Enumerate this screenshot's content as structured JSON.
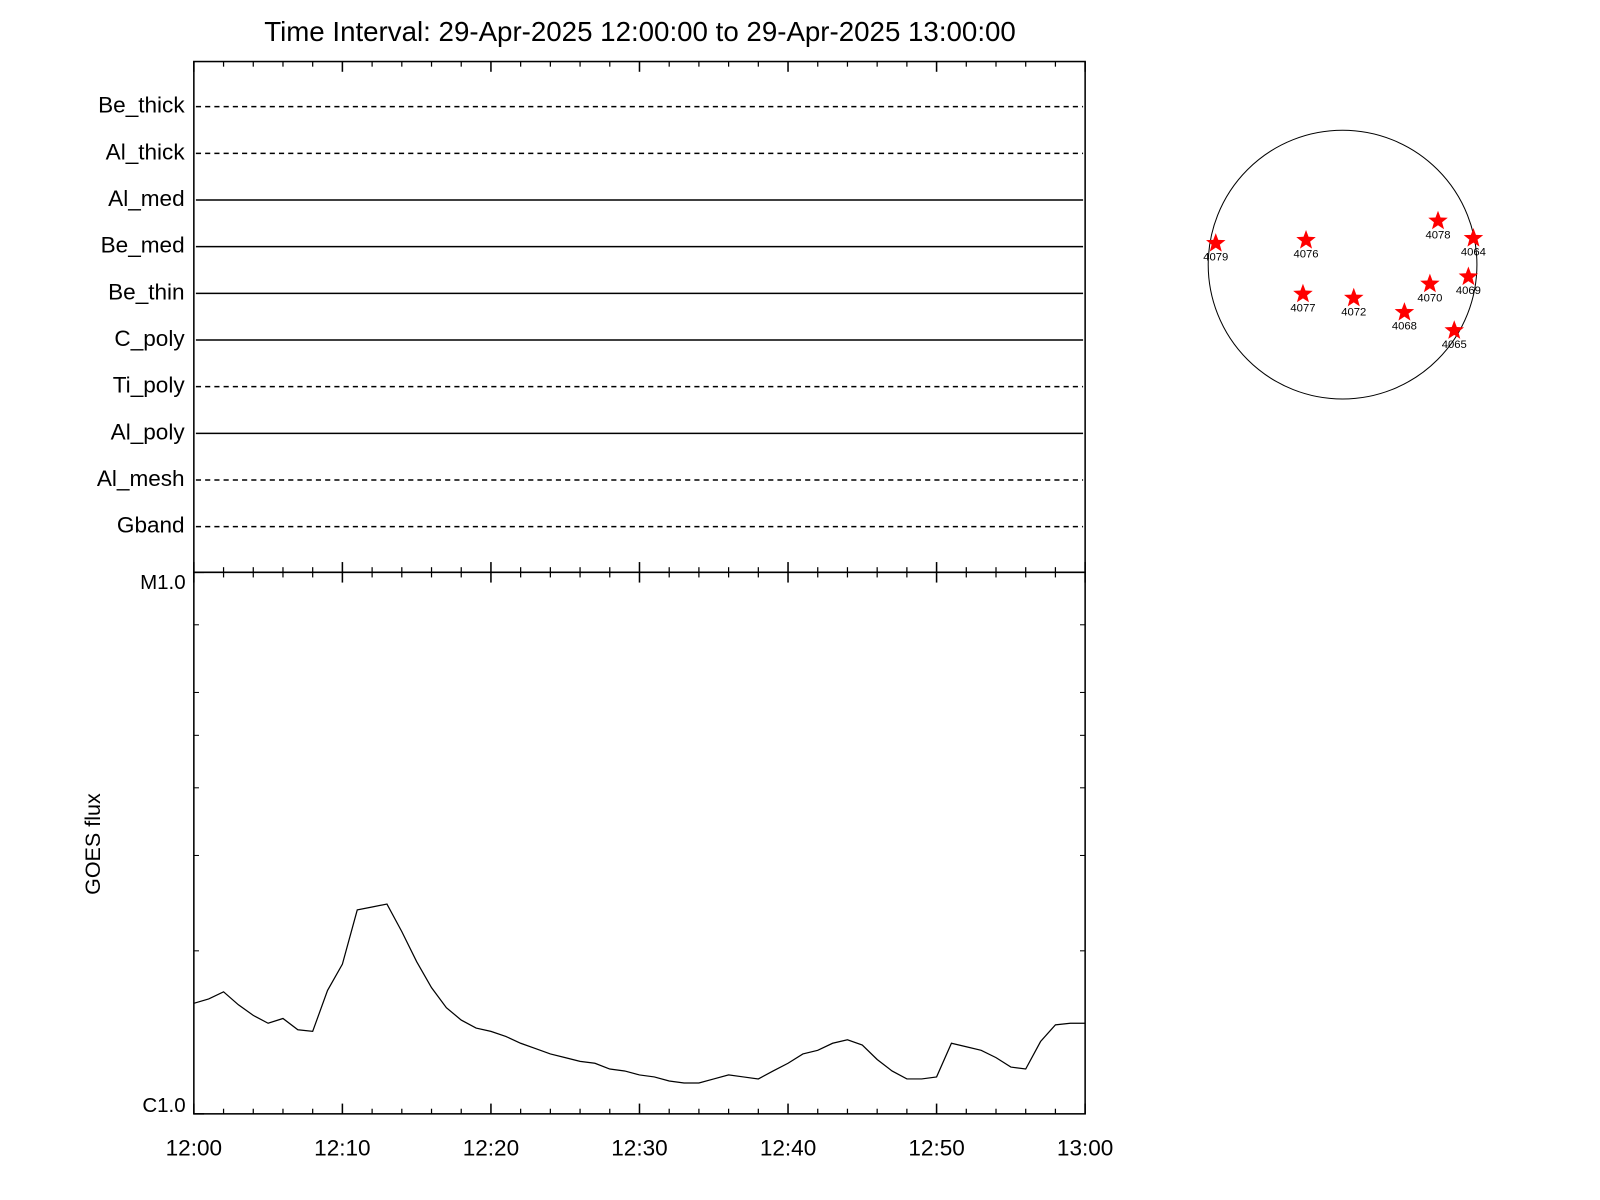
{
  "chart_data": {
    "type": "line",
    "title": "Time Interval: 29-Apr-2025 12:00:00 to 29-Apr-2025 13:00:00",
    "ylabel": "GOES flux",
    "log_y": true,
    "color": "#000000",
    "filters": [
      {
        "name": "Be_thick",
        "line": "dashed"
      },
      {
        "name": "Al_thick",
        "line": "dashed"
      },
      {
        "name": "Al_med",
        "line": "solid"
      },
      {
        "name": "Be_med",
        "line": "solid"
      },
      {
        "name": "Be_thin",
        "line": "solid"
      },
      {
        "name": "C_poly",
        "line": "solid"
      },
      {
        "name": "Ti_poly",
        "line": "dashed"
      },
      {
        "name": "Al_poly",
        "line": "solid"
      },
      {
        "name": "Al_mesh",
        "line": "dashed"
      },
      {
        "name": "Gband",
        "line": "dashed"
      }
    ],
    "xlim": [
      "12:00",
      "13:00"
    ],
    "xticks": [
      "12:00",
      "12:10",
      "12:20",
      "12:30",
      "12:40",
      "12:50",
      "13:00"
    ],
    "xminorticks": [
      "12:02",
      "12:04",
      "12:06",
      "12:08",
      "12:12",
      "12:14",
      "12:16",
      "12:18",
      "12:22",
      "12:24",
      "12:26",
      "12:28",
      "12:32",
      "12:34",
      "12:36",
      "12:38",
      "12:42",
      "12:44",
      "12:46",
      "12:48",
      "12:52",
      "12:54",
      "12:56",
      "12:58"
    ],
    "ylim": [
      1e-06,
      1e-05
    ],
    "yticks": [
      {
        "value": 1e-06,
        "label": "C1.0"
      },
      {
        "value": 1e-05,
        "label": "M1.0"
      }
    ],
    "yminorticks": [
      2e-06,
      3e-06,
      4e-06,
      5e-06,
      6e-06,
      8e-06
    ],
    "x": [
      "12:00",
      "12:01",
      "12:02",
      "12:03",
      "12:04",
      "12:05",
      "12:06",
      "12:07",
      "12:08",
      "12:09",
      "12:10",
      "12:11",
      "12:12",
      "12:13",
      "12:14",
      "12:15",
      "12:16",
      "12:17",
      "12:18",
      "12:19",
      "12:20",
      "12:21",
      "12:22",
      "12:23",
      "12:24",
      "12:25",
      "12:26",
      "12:27",
      "12:28",
      "12:29",
      "12:30",
      "12:31",
      "12:32",
      "12:33",
      "12:34",
      "12:35",
      "12:36",
      "12:37",
      "12:38",
      "12:39",
      "12:40",
      "12:41",
      "12:42",
      "12:43",
      "12:44",
      "12:45",
      "12:46",
      "12:47",
      "12:48",
      "12:49",
      "12:50",
      "12:51",
      "12:52",
      "12:53",
      "12:54",
      "12:55",
      "12:56",
      "12:57",
      "12:58",
      "12:59",
      "13:00"
    ],
    "values": [
      1.6e-06,
      1.63e-06,
      1.68e-06,
      1.59e-06,
      1.52e-06,
      1.47e-06,
      1.5e-06,
      1.43e-06,
      1.42e-06,
      1.69e-06,
      1.89e-06,
      2.38e-06,
      2.41e-06,
      2.44e-06,
      2.17e-06,
      1.91e-06,
      1.71e-06,
      1.57e-06,
      1.49e-06,
      1.44e-06,
      1.42e-06,
      1.39e-06,
      1.35e-06,
      1.32e-06,
      1.29e-06,
      1.27e-06,
      1.25e-06,
      1.24e-06,
      1.21e-06,
      1.2e-06,
      1.18e-06,
      1.17e-06,
      1.15e-06,
      1.14e-06,
      1.14e-06,
      1.16e-06,
      1.18e-06,
      1.17e-06,
      1.16e-06,
      1.2e-06,
      1.24e-06,
      1.29e-06,
      1.31e-06,
      1.35e-06,
      1.37e-06,
      1.34e-06,
      1.26e-06,
      1.2e-06,
      1.16e-06,
      1.16e-06,
      1.17e-06,
      1.35e-06,
      1.33e-06,
      1.31e-06,
      1.27e-06,
      1.22e-06,
      1.21e-06,
      1.36e-06,
      1.46e-06,
      1.47e-06,
      1.47e-06
    ],
    "regions": [
      {
        "name": "4079",
        "x": -906,
        "y": 152
      },
      {
        "name": "4076",
        "x": -261,
        "y": 174
      },
      {
        "name": "4078",
        "x": 682,
        "y": 312
      },
      {
        "name": "4064",
        "x": 935,
        "y": 188
      },
      {
        "name": "4070",
        "x": 624,
        "y": -138
      },
      {
        "name": "4069",
        "x": 899,
        "y": -87
      },
      {
        "name": "4077",
        "x": -283,
        "y": -210
      },
      {
        "name": "4072",
        "x": 80,
        "y": -239
      },
      {
        "name": "4068",
        "x": 442,
        "y": -341
      },
      {
        "name": "4065",
        "x": 798,
        "y": -471
      }
    ],
    "region_color": "#ff0000"
  }
}
